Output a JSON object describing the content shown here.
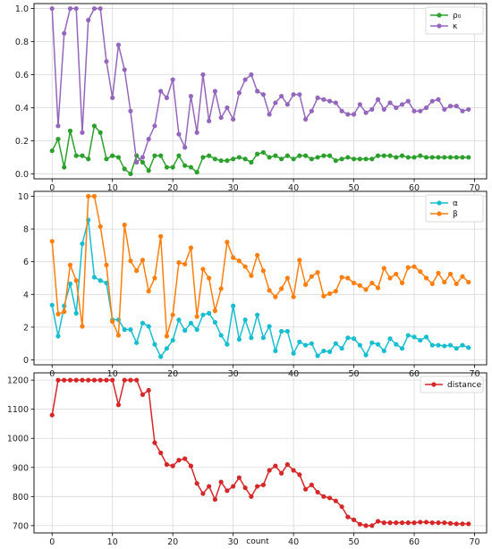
{
  "chart_data": [
    {
      "type": "line",
      "x": [
        0,
        1,
        2,
        3,
        4,
        5,
        6,
        7,
        8,
        9,
        10,
        11,
        12,
        13,
        14,
        15,
        16,
        17,
        18,
        19,
        20,
        21,
        22,
        23,
        24,
        25,
        26,
        27,
        28,
        29,
        30,
        31,
        32,
        33,
        34,
        35,
        36,
        37,
        38,
        39,
        40,
        41,
        42,
        43,
        44,
        45,
        46,
        47,
        48,
        49,
        50,
        51,
        52,
        53,
        54,
        55,
        56,
        57,
        58,
        59,
        60,
        61,
        62,
        63,
        64,
        65,
        66,
        67,
        68,
        69
      ],
      "xticks": [
        "0",
        "10",
        "20",
        "30",
        "40",
        "50",
        "60",
        "70"
      ],
      "yticks": [
        "0.0",
        "0.2",
        "0.4",
        "0.6",
        "0.8",
        "1.0"
      ],
      "xlim": [
        -3,
        72
      ],
      "ylim": [
        -0.03,
        1.03
      ],
      "yticks_values": [
        0,
        0.2,
        0.4,
        0.6,
        0.8,
        1.0
      ],
      "xticks_values": [
        0,
        10,
        20,
        30,
        40,
        50,
        60,
        70
      ],
      "grid": true,
      "legend_position": "top-right",
      "series": [
        {
          "name": "ρ₀",
          "color": "#2ca02c",
          "values": [
            0.14,
            0.21,
            0.04,
            0.26,
            0.11,
            0.11,
            0.09,
            0.29,
            0.25,
            0.09,
            0.11,
            0.1,
            0.03,
            0.0,
            0.11,
            0.07,
            0.02,
            0.11,
            0.11,
            0.04,
            0.04,
            0.11,
            0.05,
            0.04,
            0.01,
            0.1,
            0.11,
            0.09,
            0.08,
            0.08,
            0.09,
            0.1,
            0.09,
            0.07,
            0.12,
            0.13,
            0.1,
            0.11,
            0.09,
            0.11,
            0.09,
            0.11,
            0.11,
            0.09,
            0.1,
            0.11,
            0.11,
            0.08,
            0.09,
            0.1,
            0.09,
            0.09,
            0.09,
            0.09,
            0.11,
            0.11,
            0.11,
            0.1,
            0.11,
            0.1,
            0.1,
            0.11,
            0.1,
            0.1,
            0.1,
            0.1,
            0.1,
            0.1,
            0.1,
            0.1
          ]
        },
        {
          "name": "κ",
          "color": "#9467bd",
          "values": [
            1.0,
            0.29,
            0.85,
            1.0,
            1.0,
            0.25,
            0.93,
            1.0,
            1.0,
            0.68,
            0.46,
            0.78,
            0.63,
            0.38,
            0.07,
            0.1,
            0.21,
            0.29,
            0.5,
            0.46,
            0.57,
            0.24,
            0.16,
            0.47,
            0.25,
            0.6,
            0.32,
            0.5,
            0.34,
            0.4,
            0.33,
            0.49,
            0.57,
            0.6,
            0.5,
            0.48,
            0.36,
            0.43,
            0.47,
            0.42,
            0.48,
            0.48,
            0.33,
            0.38,
            0.46,
            0.45,
            0.44,
            0.43,
            0.38,
            0.36,
            0.36,
            0.42,
            0.37,
            0.39,
            0.45,
            0.39,
            0.43,
            0.4,
            0.42,
            0.44,
            0.38,
            0.38,
            0.4,
            0.44,
            0.45,
            0.39,
            0.41,
            0.41,
            0.38,
            0.39
          ]
        }
      ]
    },
    {
      "type": "line",
      "x": [
        0,
        1,
        2,
        3,
        4,
        5,
        6,
        7,
        8,
        9,
        10,
        11,
        12,
        13,
        14,
        15,
        16,
        17,
        18,
        19,
        20,
        21,
        22,
        23,
        24,
        25,
        26,
        27,
        28,
        29,
        30,
        31,
        32,
        33,
        34,
        35,
        36,
        37,
        38,
        39,
        40,
        41,
        42,
        43,
        44,
        45,
        46,
        47,
        48,
        49,
        50,
        51,
        52,
        53,
        54,
        55,
        56,
        57,
        58,
        59,
        60,
        61,
        62,
        63,
        64,
        65,
        66,
        67,
        68,
        69
      ],
      "xticks": [
        "0",
        "10",
        "20",
        "30",
        "40",
        "50",
        "60",
        "70"
      ],
      "yticks": [
        "0",
        "2",
        "4",
        "6",
        "8",
        "10"
      ],
      "xlim": [
        -3,
        72
      ],
      "ylim": [
        -0.3,
        10.3
      ],
      "yticks_values": [
        0,
        2,
        4,
        6,
        8,
        10
      ],
      "xticks_values": [
        0,
        10,
        20,
        30,
        40,
        50,
        60,
        70
      ],
      "grid": true,
      "legend_position": "top-right",
      "series": [
        {
          "name": "α",
          "color": "#17becf",
          "values": [
            3.35,
            1.45,
            3.3,
            4.65,
            2.85,
            7.1,
            8.55,
            5.05,
            4.85,
            4.7,
            2.45,
            2.45,
            1.85,
            1.85,
            1.05,
            2.25,
            2.05,
            0.95,
            0.2,
            0.7,
            1.2,
            2.45,
            1.8,
            2.25,
            1.85,
            2.75,
            2.85,
            2.3,
            1.5,
            0.95,
            3.3,
            1.25,
            2.45,
            1.35,
            2.75,
            1.35,
            2.05,
            0.55,
            1.75,
            1.75,
            0.4,
            1.1,
            0.9,
            1.0,
            0.25,
            0.55,
            0.5,
            1.0,
            0.7,
            1.35,
            1.3,
            0.9,
            0.3,
            1.05,
            0.95,
            0.55,
            1.3,
            0.95,
            0.7,
            1.5,
            1.4,
            1.2,
            1.4,
            0.9,
            0.9,
            0.85,
            0.9,
            0.7,
            0.9,
            0.75
          ]
        },
        {
          "name": "β",
          "color": "#ff7f0e",
          "values": [
            7.25,
            2.8,
            2.95,
            5.8,
            4.85,
            2.05,
            10.0,
            10.0,
            8.15,
            5.8,
            2.35,
            1.5,
            8.25,
            6.05,
            5.45,
            6.1,
            4.2,
            5.0,
            7.55,
            1.45,
            2.75,
            5.95,
            5.85,
            6.85,
            2.65,
            5.55,
            5.0,
            3.0,
            4.35,
            7.2,
            6.25,
            6.05,
            5.7,
            5.15,
            6.4,
            5.45,
            4.25,
            3.85,
            4.35,
            5.0,
            3.85,
            6.1,
            4.6,
            5.1,
            5.35,
            3.9,
            4.05,
            4.2,
            5.05,
            5.0,
            4.7,
            4.55,
            4.3,
            4.7,
            4.4,
            5.6,
            5.0,
            5.25,
            4.7,
            5.65,
            5.7,
            5.4,
            5.0,
            4.65,
            5.3,
            4.75,
            5.25,
            4.65,
            5.1,
            4.75
          ]
        }
      ]
    },
    {
      "type": "line",
      "x": [
        0,
        1,
        2,
        3,
        4,
        5,
        6,
        7,
        8,
        9,
        10,
        11,
        12,
        13,
        14,
        15,
        16,
        17,
        18,
        19,
        20,
        21,
        22,
        23,
        24,
        25,
        26,
        27,
        28,
        29,
        30,
        31,
        32,
        33,
        34,
        35,
        36,
        37,
        38,
        39,
        40,
        41,
        42,
        43,
        44,
        45,
        46,
        47,
        48,
        49,
        50,
        51,
        52,
        53,
        54,
        55,
        56,
        57,
        58,
        59,
        60,
        61,
        62,
        63,
        64,
        65,
        66,
        67,
        68,
        69
      ],
      "xticks": [
        "0",
        "10",
        "20",
        "30",
        "40",
        "50",
        "60",
        "70"
      ],
      "yticks": [
        "700",
        "800",
        "900",
        "1000",
        "1100",
        "1200"
      ],
      "xlim": [
        -3,
        72
      ],
      "ylim": [
        675,
        1225
      ],
      "yticks_values": [
        700,
        800,
        900,
        1000,
        1100,
        1200
      ],
      "xticks_values": [
        0,
        10,
        20,
        30,
        40,
        50,
        60,
        70
      ],
      "xlabel": "count",
      "grid": true,
      "legend_position": "top-right",
      "series": [
        {
          "name": "distance",
          "color": "#d62728",
          "values": [
            1080,
            1200,
            1200,
            1200,
            1200,
            1200,
            1200,
            1200,
            1200,
            1200,
            1200,
            1115,
            1200,
            1200,
            1200,
            1150,
            1165,
            985,
            950,
            910,
            905,
            925,
            930,
            905,
            845,
            810,
            835,
            790,
            850,
            820,
            835,
            865,
            830,
            800,
            835,
            840,
            890,
            905,
            880,
            910,
            890,
            875,
            825,
            840,
            815,
            800,
            795,
            785,
            765,
            730,
            720,
            705,
            700,
            700,
            715,
            710,
            710,
            710,
            710,
            710,
            710,
            712,
            712,
            710,
            710,
            710,
            708,
            706,
            706,
            706
          ]
        }
      ]
    }
  ]
}
